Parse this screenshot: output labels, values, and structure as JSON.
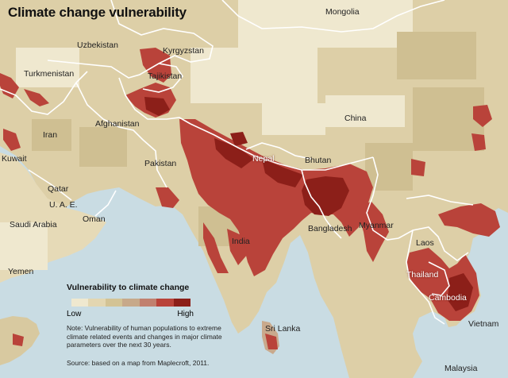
{
  "title": "Climate change vulnerability",
  "legend": {
    "title": "Vulnerability to climate change",
    "low_label": "Low",
    "high_label": "High",
    "colors": [
      "#efe8cf",
      "#e3d6b1",
      "#d3c395",
      "#c7a98a",
      "#c1806f",
      "#b9433a",
      "#8c1f19"
    ]
  },
  "note": "Note: Vulnerability of human populations to extreme climate related events and changes in major climate parameters over the next 30 years.",
  "source": "Source: based on a map from Maplecroft, 2011.",
  "labels": {
    "mongolia": "Mongolia",
    "uzbekistan": "Uzbekistan",
    "kyrgyzstan": "Kyrgyzstan",
    "turkmenistan": "Turkmenistan",
    "tajikistan": "Tajikistan",
    "afghanistan": "Afghanistan",
    "iran": "Iran",
    "china": "China",
    "pakistan": "Pakistan",
    "nepal": "Nepal",
    "bhutan": "Bhutan",
    "kuwait": "Kuwait",
    "qatar": "Qatar",
    "uae": "U. A. E.",
    "oman": "Oman",
    "saudi_arabia": "Saudi Arabia",
    "bangladesh": "Bangladesh",
    "myanmar": "Myanmar",
    "india": "India",
    "laos": "Laos",
    "thailand": "Thailand",
    "cambodia": "Cambodia",
    "yemen": "Yemen",
    "sri_lanka": "Sri Lanka",
    "vietnam": "Vietnam",
    "malaysia": "Malaysia"
  },
  "colors": {
    "water": "#c9dce3",
    "land_low": "#e3d6b1",
    "land_mid": "#d3c395",
    "high": "#b9433a",
    "highest": "#8c1f19",
    "border": "#ffffff"
  }
}
